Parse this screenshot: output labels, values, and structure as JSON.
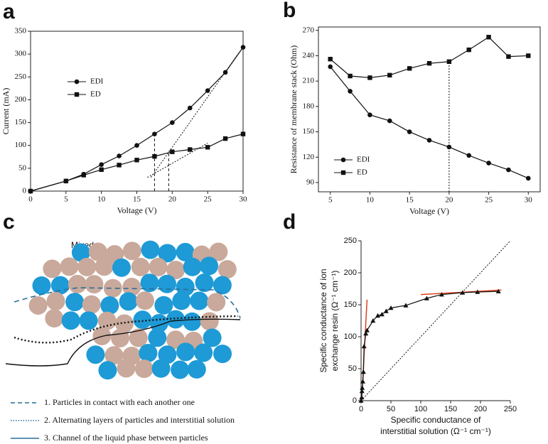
{
  "panel_labels": [
    "a",
    "b",
    "c",
    "d"
  ],
  "chart_data": [
    {
      "type": "line",
      "xlabel": "Voltage (V)",
      "ylabel": [
        "Current (mA)"
      ],
      "xlim": [
        0,
        30
      ],
      "xticks": [
        0,
        5,
        10,
        15,
        20,
        25,
        30
      ],
      "ylim": [
        0,
        350
      ],
      "yticks": [
        0,
        50,
        100,
        150,
        200,
        250,
        300,
        350
      ],
      "x": [
        0,
        5,
        7.5,
        10,
        12.5,
        15,
        17.5,
        20,
        22.5,
        25,
        27.5,
        30
      ],
      "series": [
        {
          "name": "EDI",
          "color": "#111111",
          "marker": "circle",
          "values": [
            0,
            22,
            37,
            58,
            77,
            100,
            125,
            150,
            182,
            220,
            260,
            315
          ]
        },
        {
          "name": "ED",
          "color": "#111111",
          "marker": "square",
          "values": [
            0,
            22,
            35,
            47,
            57,
            68,
            76,
            86,
            91,
            96,
            115,
            125
          ]
        }
      ],
      "lines": [
        {
          "style": "dotted",
          "color": "#111111",
          "points": [
            [
              17,
              30
            ],
            [
              29.5,
              305
            ]
          ]
        },
        {
          "style": "dotted",
          "color": "#111111",
          "points": [
            [
              16.5,
              30
            ],
            [
              25,
              105
            ]
          ]
        },
        {
          "style": "dashed",
          "color": "#111111",
          "points": [
            [
              17.5,
              0
            ],
            [
              17.5,
              125
            ]
          ]
        },
        {
          "style": "dashed",
          "color": "#111111",
          "points": [
            [
              19.5,
              0
            ],
            [
              19.5,
              88
            ]
          ]
        }
      ],
      "legend": "upper left"
    },
    {
      "type": "line",
      "xlabel": "Voltage (V)",
      "ylabel": [
        "Resistance of membrane stack (Ohm)"
      ],
      "xlim": [
        3.5,
        31.5
      ],
      "xticks": [
        5,
        10,
        15,
        20,
        25,
        30
      ],
      "ylim": [
        79,
        274
      ],
      "yticks": [
        90,
        120,
        150,
        180,
        210,
        240,
        270
      ],
      "x": [
        5,
        7.5,
        10,
        12.5,
        15,
        17.5,
        20,
        22.5,
        25,
        27.5,
        30
      ],
      "series": [
        {
          "name": "EDI",
          "color": "#111111",
          "marker": "circle",
          "values": [
            227,
            198,
            170,
            163,
            150,
            140,
            132,
            122,
            113,
            105,
            95
          ]
        },
        {
          "name": "ED",
          "color": "#111111",
          "marker": "square",
          "values": [
            236,
            216,
            214,
            217,
            225,
            231,
            233,
            247,
            262,
            239,
            240
          ]
        }
      ],
      "lines": [
        {
          "style": "dotted",
          "color": "#111111",
          "points": [
            [
              20,
              79
            ],
            [
              20,
              233
            ]
          ]
        }
      ],
      "legend": "lower left"
    },
    {
      "type": "line",
      "xlabel": [
        "Specific conductance of",
        "interstitial solution (Ω⁻¹ cm⁻¹)"
      ],
      "ylabel": [
        "Specific conductance of ion",
        "exchange resin (Ω⁻¹ cm⁻¹)"
      ],
      "xlim": [
        0,
        250
      ],
      "xticks": [
        0,
        50,
        100,
        150,
        200,
        250
      ],
      "ylim": [
        0,
        250
      ],
      "yticks": [
        0,
        50,
        100,
        150,
        200,
        250
      ],
      "x": [
        0,
        1,
        1.5,
        2,
        3,
        4,
        5,
        8,
        10,
        20,
        28,
        35,
        42,
        50,
        75,
        110,
        135,
        170,
        195,
        230
      ],
      "series": [
        {
          "color": "#111111",
          "marker": "triangle",
          "values": [
            0,
            5,
            15,
            20,
            30,
            45,
            85,
            105,
            110,
            125,
            133,
            135,
            140,
            145,
            149,
            160,
            166,
            169,
            170,
            171
          ]
        }
      ],
      "lines": [
        {
          "style": "dotted",
          "color": "#111111",
          "points": [
            [
              0,
              0
            ],
            [
              250,
              250
            ]
          ]
        },
        {
          "style": "solid",
          "color": "#e0401a",
          "points": [
            [
              1,
              0
            ],
            [
              10,
              158
            ]
          ]
        },
        {
          "style": "solid",
          "color": "#e0401a",
          "points": [
            [
              100,
              166
            ],
            [
              235,
              173
            ]
          ]
        }
      ]
    }
  ],
  "diagram": {
    "title": "Mixed",
    "legend": [
      "1. Particles in contact with each another one",
      "2. Alternating layers of particles and interstitial solution",
      "3. Channel of the liquid phase between particles"
    ]
  }
}
